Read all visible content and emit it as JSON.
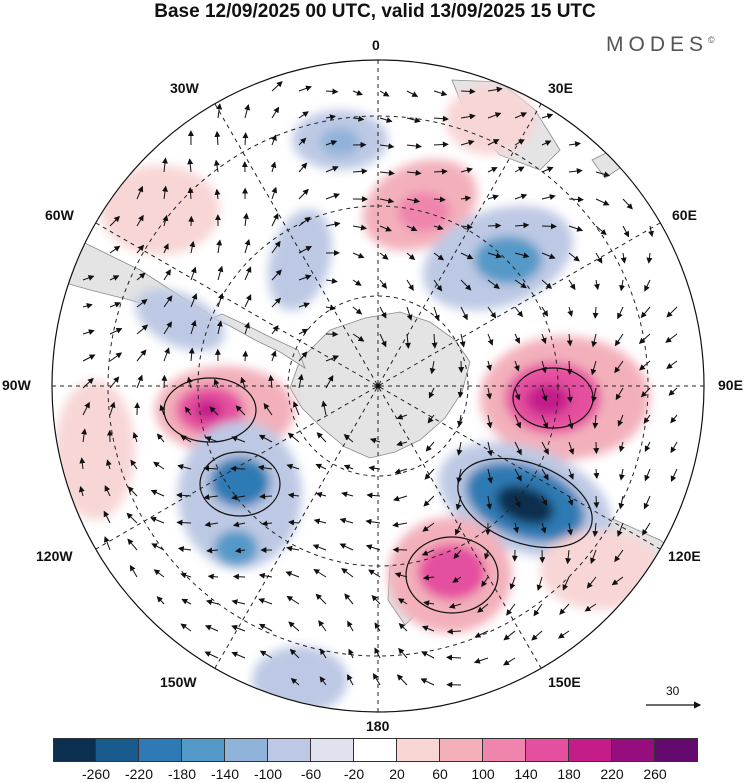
{
  "title": "Base 12/09/2025 00 UTC, valid 13/09/2025 15 UTC",
  "brand": "MODES",
  "brand_mark": "©",
  "longitude_labels": {
    "top": "0",
    "top_right": "30E",
    "upper_right": "60E",
    "right": "90E",
    "lower_right": "120E",
    "bottom_right": "150E",
    "bottom": "180",
    "bottom_left": "150W",
    "lower_left": "120W",
    "left": "90W",
    "upper_left": "60W",
    "top_left": "30W"
  },
  "reference_vector": {
    "value": "30"
  },
  "colorbar": {
    "colors": [
      "#0b2f4e",
      "#185b8c",
      "#2f7ab4",
      "#5599c8",
      "#8fb3d9",
      "#bdc9e4",
      "#e1e1f0",
      "#ffffff",
      "#f8d6d6",
      "#f3b0bb",
      "#ef84ad",
      "#e54f9f",
      "#c41d8a",
      "#960d7d",
      "#640a6e"
    ],
    "ticks": [
      "-260",
      "-220",
      "-180",
      "-140",
      "-100",
      "-60",
      "-20",
      "20",
      "60",
      "100",
      "140",
      "180",
      "220",
      "260"
    ]
  }
}
